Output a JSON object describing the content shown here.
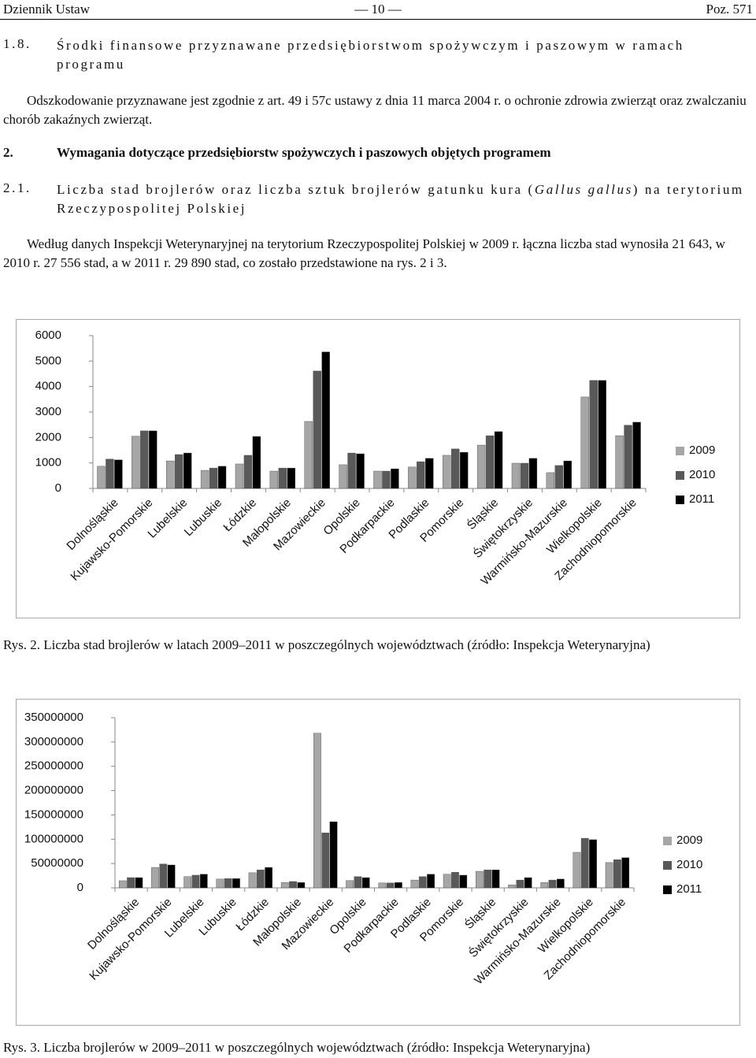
{
  "header": {
    "left": "Dziennik Ustaw",
    "center": "— 10 —",
    "right": "Poz. 571"
  },
  "section_1_8": {
    "number": "1.8.",
    "title": "Środki finansowe przyznawane przedsiębiorstwom spożywczym i paszowym w ramach programu"
  },
  "paragraph_1": "Odszkodowanie przyznawane jest zgodnie z art. 49 i 57c ustawy z dnia 11 marca 2004 r. o ochronie zdrowia zwierząt oraz zwalczaniu chorób zakaźnych zwierząt.",
  "section_2": {
    "number": "2.",
    "title": "Wymagania dotyczące przedsiębiorstw spożywczych i paszowych objętych programem"
  },
  "section_2_1": {
    "number": "2.1.",
    "title_before": "Liczba stad brojlerów oraz liczba sztuk brojlerów gatunku kura (",
    "title_italic": "Gallus gallus",
    "title_after": ") na terytorium Rzeczypospolitej Polskiej"
  },
  "paragraph_2": "Według danych Inspekcji Weterynaryjnej na terytorium Rzeczypospolitej Polskiej w 2009 r. łączna liczba stad wynosiła 21 643, w 2010 r. 27 556 stad, a w 2011 r. 29 890 stad, co zostało przedstawione na rys. 2 i 3.",
  "chart_data": [
    {
      "type": "bar",
      "caption": "Rys. 2. Liczba stad brojlerów w latach 2009–2011 w poszczególnych województwach (źródło: Inspekcja Weterynaryjna)",
      "categories": [
        "Dolnośląskie",
        "Kujawsko-Pomorskie",
        "Lubelskie",
        "Lubuskie",
        "Łódzkie",
        "Małopolskie",
        "Mazowieckie",
        "Opolskie",
        "Podkarpackie",
        "Podlaskie",
        "Pomorskie",
        "Śląskie",
        "Świętokrzyskie",
        "Warmińsko-Mazurskie",
        "Wielkopolskie",
        "Zachodniopomorskie"
      ],
      "series": [
        {
          "name": "2009",
          "color": "#a6a6a6",
          "values": [
            870,
            2050,
            1080,
            710,
            960,
            680,
            2630,
            930,
            680,
            840,
            1300,
            1700,
            990,
            620,
            3590,
            2070
          ]
        },
        {
          "name": "2010",
          "color": "#595959",
          "values": [
            1150,
            2260,
            1330,
            800,
            1300,
            800,
            4610,
            1390,
            680,
            1050,
            1550,
            2070,
            990,
            900,
            4240,
            2480
          ]
        },
        {
          "name": "2011",
          "color": "#000000",
          "values": [
            1120,
            2260,
            1390,
            870,
            2040,
            800,
            5360,
            1360,
            770,
            1180,
            1420,
            2230,
            1180,
            1080,
            4240,
            2600
          ]
        }
      ],
      "ylim": [
        0,
        6000
      ],
      "yticks": [
        0,
        1000,
        2000,
        3000,
        4000,
        5000,
        6000
      ],
      "grid": false,
      "legend": "right"
    },
    {
      "type": "bar",
      "caption": "Rys. 3. Liczba brojlerów w 2009–2011 w poszczególnych województwach (źródło: Inspekcja Weterynaryjna)",
      "categories": [
        "Dolnośląskie",
        "Kujawsko-Pomorskie",
        "Lubelskie",
        "Lubuskie",
        "Łódzkie",
        "Małopolskie",
        "Mazowieckie",
        "Opolskie",
        "Podkarpackie",
        "Podlaskie",
        "Pomorskie",
        "Śląskie",
        "Świętokrzyskie",
        "Warmińsko-Mazurskie",
        "Wielkopolskie",
        "Zachodniopomorskie"
      ],
      "series": [
        {
          "name": "2009",
          "color": "#a6a6a6",
          "values": [
            14600000,
            42000000,
            23000000,
            18000000,
            31000000,
            11000000,
            318000000,
            15000000,
            10000000,
            16000000,
            28000000,
            34000000,
            6000000,
            11000000,
            73000000,
            52000000
          ]
        },
        {
          "name": "2010",
          "color": "#595959",
          "values": [
            21000000,
            49000000,
            26000000,
            19000000,
            37000000,
            13000000,
            113000000,
            23000000,
            10000000,
            23000000,
            32000000,
            37000000,
            16000000,
            16000000,
            102000000,
            58000000
          ]
        },
        {
          "name": "2011",
          "color": "#000000",
          "values": [
            21000000,
            47000000,
            28000000,
            19000000,
            42000000,
            11000000,
            136000000,
            21000000,
            11000000,
            28000000,
            26000000,
            37000000,
            21000000,
            18000000,
            99000000,
            62000000
          ]
        }
      ],
      "ylim": [
        0,
        350000000
      ],
      "yticks": [
        0,
        50000000,
        100000000,
        150000000,
        200000000,
        250000000,
        300000000,
        350000000
      ],
      "grid": false,
      "legend": "right"
    }
  ]
}
